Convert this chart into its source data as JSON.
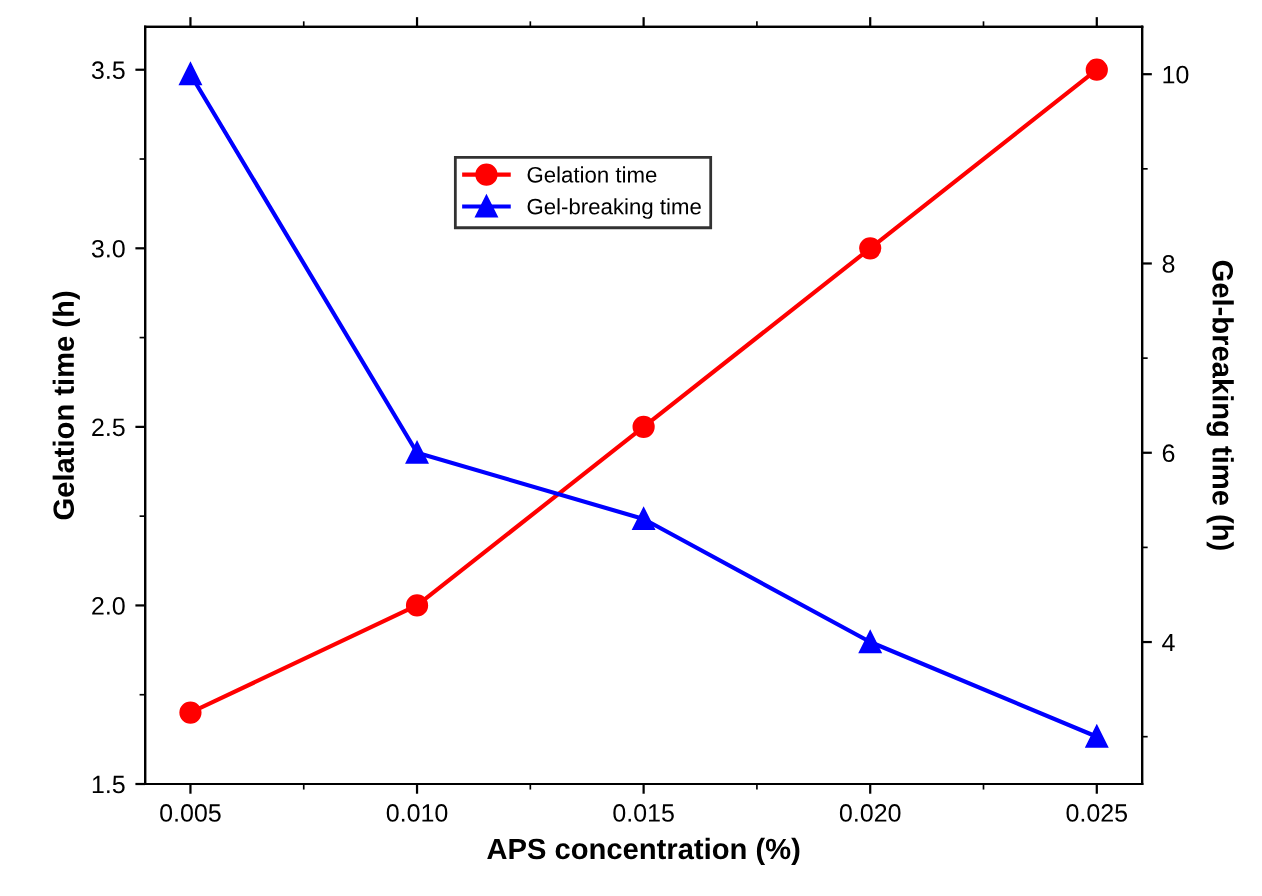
{
  "chart_data": {
    "type": "line",
    "xlabel": "APS concentration (%)",
    "ylabel": "Gelation time (h)",
    "y2label": "Gel-breaking time (h)",
    "x": [
      0.005,
      0.01,
      0.015,
      0.02,
      0.025
    ],
    "series": [
      {
        "name": "Gelation time",
        "color": "#ff0000",
        "marker": "circle",
        "values": [
          1.7,
          2.0,
          2.5,
          3.0,
          3.5
        ]
      },
      {
        "name": "Gel-breaking time",
        "color": "#0000ff",
        "marker": "triangle",
        "axis": "y2",
        "values": [
          10.0,
          6.0,
          5.3,
          4.0,
          3.0
        ]
      }
    ],
    "xlim": [
      0.004,
      0.026
    ],
    "xticks": [
      {
        "value": 0.005,
        "label": "0.005"
      },
      {
        "value": 0.01,
        "label": "0.010"
      },
      {
        "value": 0.015,
        "label": "0.015"
      },
      {
        "value": 0.02,
        "label": "0.020"
      },
      {
        "value": 0.025,
        "label": "0.025"
      }
    ],
    "ylim": [
      1.5,
      3.62
    ],
    "yticks": [
      {
        "value": 1.5,
        "label": "1.5"
      },
      {
        "value": 2.0,
        "label": "2.0"
      },
      {
        "value": 2.5,
        "label": "2.5"
      },
      {
        "value": 3.0,
        "label": "3.0"
      },
      {
        "value": 3.5,
        "label": "3.5"
      }
    ],
    "y2lim": [
      2.5,
      10.5
    ],
    "y2ticks": [
      4,
      6,
      8,
      10
    ],
    "grid": false,
    "legend": "top",
    "line_style": "solid"
  }
}
